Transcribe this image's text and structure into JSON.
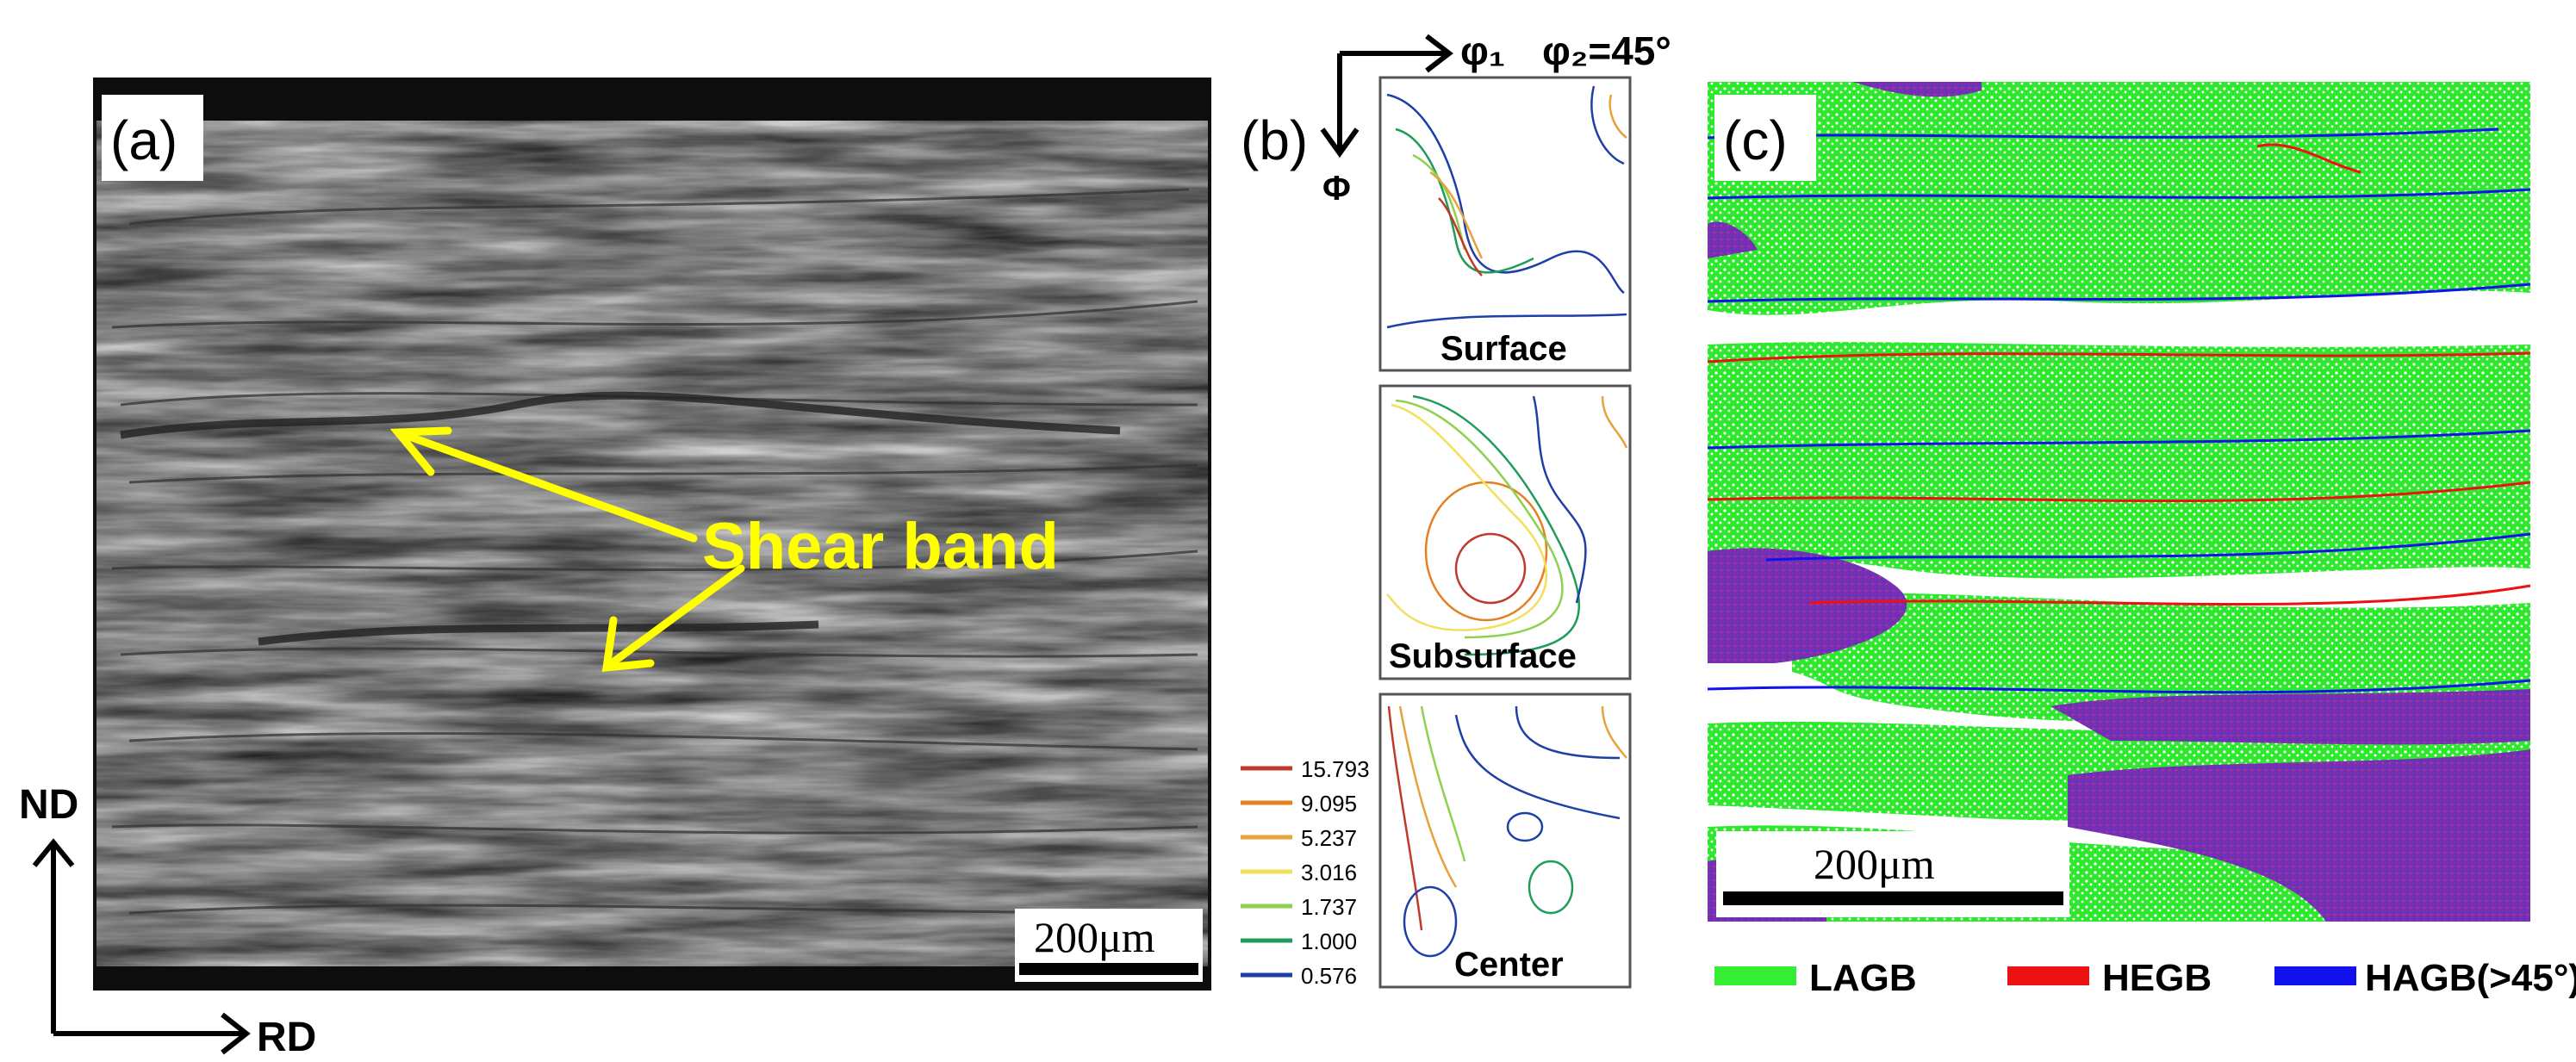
{
  "panel_a": {
    "label": "(a)",
    "annotation": "Shear band",
    "scale_bar": "200μm",
    "axis_nd": "ND",
    "axis_rd": "RD",
    "annotation_color": "#ffff00"
  },
  "panel_b": {
    "label": "(b)",
    "axis_phi1": "φ₁",
    "axis_phi2": "φ₂=45°",
    "axis_Phi": "Φ",
    "subplots": [
      {
        "caption": "Surface"
      },
      {
        "caption": "Subsurface"
      },
      {
        "caption": "Center"
      }
    ],
    "legend": [
      {
        "value": "15.793",
        "color": "#c0392b"
      },
      {
        "value": "9.095",
        "color": "#e67e22"
      },
      {
        "value": "5.237",
        "color": "#e6a23c"
      },
      {
        "value": "3.016",
        "color": "#f1e05a"
      },
      {
        "value": "1.737",
        "color": "#8fd14f"
      },
      {
        "value": "1.000",
        "color": "#1f9c5a"
      },
      {
        "value": "0.576",
        "color": "#1f3fa8"
      }
    ]
  },
  "panel_c": {
    "label": "(c)",
    "scale_bar": "200μm",
    "legend": [
      {
        "label": "LAGB",
        "color": "#33ee33"
      },
      {
        "label": "HEGB",
        "color": "#ee1111"
      },
      {
        "label": "HAGB(>45°)",
        "color": "#1111ee"
      }
    ]
  }
}
